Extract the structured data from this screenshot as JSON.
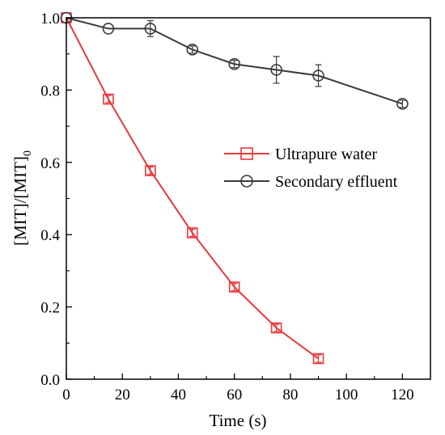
{
  "chart_data": {
    "type": "line",
    "xlabel": "Time (s)",
    "ylabel_main": "[MIT]/[MIT]",
    "ylabel_sub": "0",
    "xlim": [
      0,
      130
    ],
    "ylim": [
      0,
      1.0
    ],
    "x_ticks": [
      0,
      20,
      40,
      60,
      80,
      100,
      120
    ],
    "y_ticks": [
      "0.0",
      "0.2",
      "0.4",
      "0.6",
      "0.8",
      "1.0"
    ],
    "grid": false,
    "legend_position": "middle-right",
    "series": [
      {
        "name": "Ultrapure water",
        "color": "#e8383b",
        "marker": "square",
        "x": [
          0,
          15,
          30,
          45,
          60,
          75,
          90
        ],
        "y": [
          1.0,
          0.775,
          0.577,
          0.405,
          0.255,
          0.142,
          0.057
        ],
        "err": [
          0.0,
          0.01,
          0.01,
          0.01,
          0.01,
          0.01,
          0.01
        ]
      },
      {
        "name": "Secondary effluent",
        "color": "#3a3a3a",
        "marker": "circle",
        "x": [
          0,
          15,
          30,
          45,
          60,
          75,
          90,
          120
        ],
        "y": [
          1.0,
          0.97,
          0.97,
          0.912,
          0.872,
          0.856,
          0.84,
          0.762
        ],
        "err": [
          0.0,
          0.0,
          0.022,
          0.01,
          0.01,
          0.037,
          0.03,
          0.01
        ]
      }
    ]
  }
}
